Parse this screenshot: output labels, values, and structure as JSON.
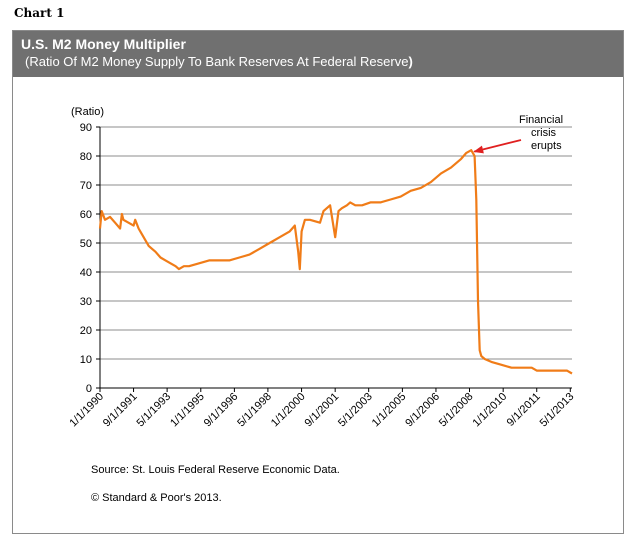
{
  "chart_label": "Chart 1",
  "header": {
    "title": "U.S. M2 Money Multiplier",
    "subtitle": "(Ratio Of M2 Money Supply To Bank Reserves  At Federal Reserve",
    "subtitle_close": ")"
  },
  "colors": {
    "line": "#f07c18",
    "header_bg": "#707070",
    "gridline": "#8c8c8c",
    "arrow": "#e02020"
  },
  "chart_data": {
    "type": "line",
    "title": "U.S. M2 Money Multiplier",
    "subtitle": "(Ratio Of M2 Money Supply To Bank Reserves  At Federal Reserve)",
    "ylabel": "(Ratio)",
    "xlabel": "",
    "ylim": [
      0,
      90
    ],
    "yticks": [
      0,
      10,
      20,
      30,
      40,
      50,
      60,
      70,
      80,
      90
    ],
    "xlim": [
      "1/1/1990",
      "6/1/2013"
    ],
    "xticks": [
      "1/1/1990",
      "9/1/1991",
      "5/1/1993",
      "1/1/1995",
      "9/1/1996",
      "5/1/1998",
      "1/1/2000",
      "9/1/2001",
      "5/1/2003",
      "1/1/2005",
      "9/1/2006",
      "5/1/2008",
      "1/1/2010",
      "9/1/2011",
      "5/1/2013"
    ],
    "grid": "horizontal",
    "legend": "none",
    "series": [
      {
        "x": [
          "1990-01-01",
          "1990-02-01",
          "1990-04-01",
          "1990-07-01",
          "1990-10-01",
          "1991-01-01",
          "1991-02-01",
          "1991-03-01",
          "1991-06-01",
          "1991-09-01",
          "1991-10-01",
          "1991-12-01",
          "1992-01-01",
          "1992-04-01",
          "1992-06-01",
          "1992-08-01",
          "1992-10-01",
          "1993-01-01",
          "1993-04-01",
          "1993-07-01",
          "1993-10-01",
          "1993-12-01",
          "1994-03-01",
          "1994-06-01",
          "1994-12-01",
          "1995-06-01",
          "1995-12-01",
          "1996-06-01",
          "1996-12-01",
          "1997-06-01",
          "1997-12-01",
          "1998-06-01",
          "1998-12-01",
          "1999-06-01",
          "1999-09-01",
          "1999-11-01",
          "1999-12-01",
          "2000-01-01",
          "2000-03-01",
          "2000-06-01",
          "2000-12-01",
          "2001-02-01",
          "2001-06-01",
          "2001-09-01",
          "2001-11-01",
          "2002-01-01",
          "2002-04-01",
          "2002-06-01",
          "2002-09-01",
          "2003-01-01",
          "2003-06-01",
          "2003-12-01",
          "2004-06-01",
          "2004-12-01",
          "2005-06-01",
          "2005-12-01",
          "2006-06-01",
          "2006-12-01",
          "2007-06-01",
          "2007-12-01",
          "2008-03-01",
          "2008-06-01",
          "2008-08-01",
          "2008-09-01",
          "2008-10-01",
          "2008-11-01",
          "2008-12-01",
          "2009-02-01",
          "2009-06-01",
          "2009-12-01",
          "2010-06-01",
          "2010-12-01",
          "2011-06-01",
          "2011-09-01",
          "2012-01-01",
          "2012-06-01",
          "2012-12-01",
          "2013-03-01",
          "2013-06-01"
        ],
        "values": [
          55,
          61,
          58,
          59,
          57,
          55,
          60,
          58,
          57,
          56,
          58,
          55,
          54,
          51,
          49,
          48,
          47,
          45,
          44,
          43,
          42,
          41,
          42,
          42,
          43,
          44,
          44,
          44,
          45,
          46,
          48,
          50,
          52,
          54,
          56,
          47,
          41,
          54,
          58,
          58,
          57,
          61,
          63,
          52,
          61,
          62,
          63,
          64,
          63,
          63,
          64,
          64,
          65,
          66,
          68,
          69,
          71,
          74,
          76,
          79,
          81,
          82,
          80,
          65,
          30,
          13,
          11,
          10,
          9,
          8,
          7,
          7,
          7,
          6,
          6,
          6,
          6,
          6,
          5
        ]
      }
    ],
    "annotations": [
      {
        "text_lines": [
          "Financial",
          "crisis",
          "erupts"
        ],
        "x": "2008-06-01",
        "y": 81.5
      }
    ]
  },
  "notes": {
    "source": "Source: St. Louis Federal Reserve Economic Data.",
    "copyright": "© Standard & Poor's 2013."
  }
}
